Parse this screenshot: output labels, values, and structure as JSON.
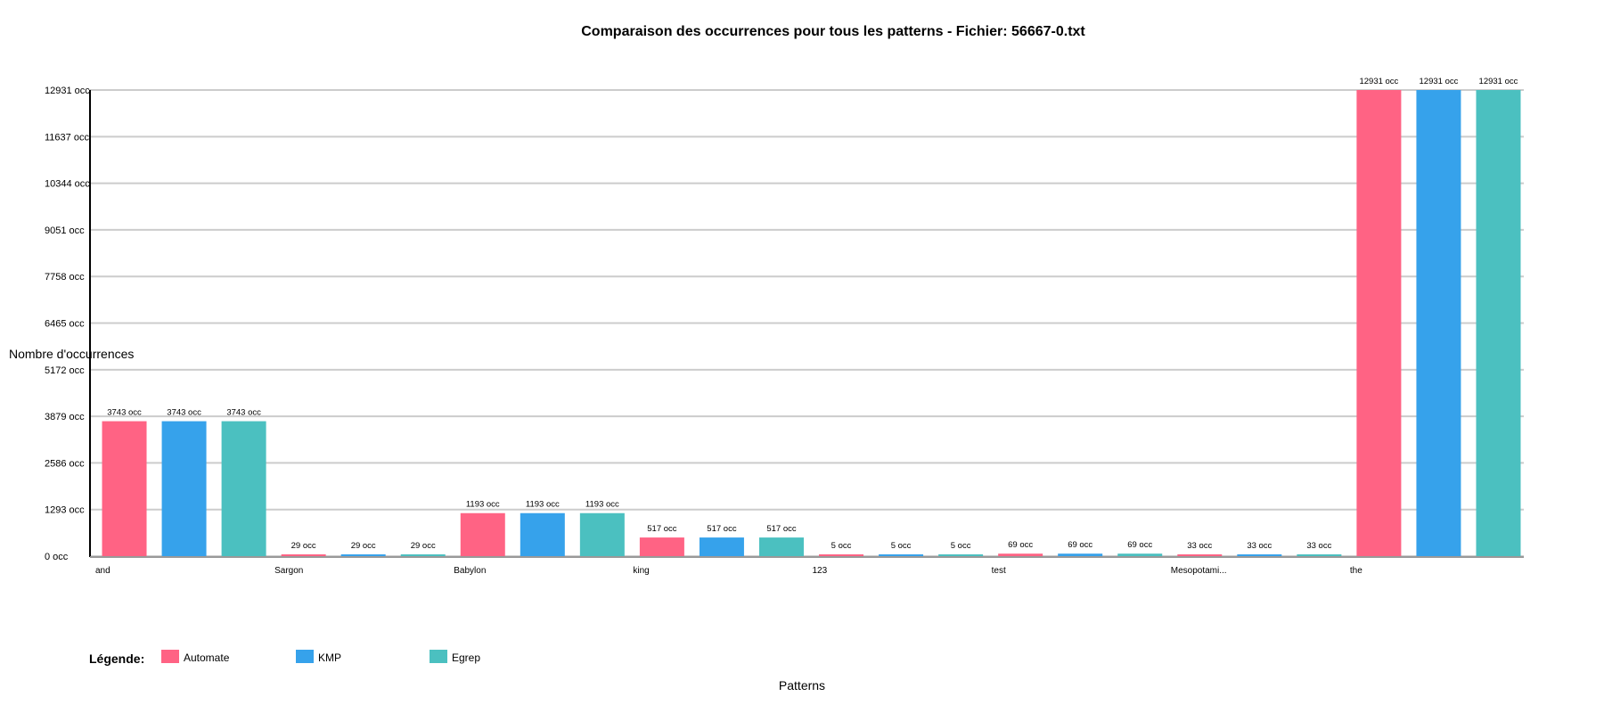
{
  "chart_data": {
    "type": "bar",
    "title": "Comparaison des occurrences pour tous les patterns - Fichier: 56667-0.txt",
    "xlabel": "Patterns",
    "ylabel": "Nombre d'occurrences",
    "categories": [
      "and",
      "Sargon",
      "Babylon",
      "king",
      "123",
      "test",
      "Mesopotami...",
      "the"
    ],
    "series": [
      {
        "name": "Automate",
        "color": "#ff6384",
        "values": [
          3743,
          29,
          1193,
          517,
          5,
          69,
          33,
          12931
        ]
      },
      {
        "name": "KMP",
        "color": "#36a2eb",
        "values": [
          3743,
          29,
          1193,
          517,
          5,
          69,
          33,
          12931
        ]
      },
      {
        "name": "Egrep",
        "color": "#4bc0c0",
        "values": [
          3743,
          29,
          1193,
          517,
          5,
          69,
          33,
          12931
        ]
      }
    ],
    "yticks": [
      "0 occ",
      "1293 occ",
      "2586 occ",
      "3879 occ",
      "5172 occ",
      "6465 occ",
      "7758 occ",
      "9051 occ",
      "10344 occ",
      "11637 occ",
      "12931 occ"
    ],
    "ytick_values": [
      0,
      1293,
      2586,
      3879,
      5172,
      6465,
      7758,
      9051,
      10344,
      11637,
      12931
    ],
    "ylim": [
      0,
      12931
    ],
    "value_suffix": " occ",
    "grid": true,
    "legend": {
      "title": "Légende:",
      "placement": "bottom-left"
    }
  }
}
